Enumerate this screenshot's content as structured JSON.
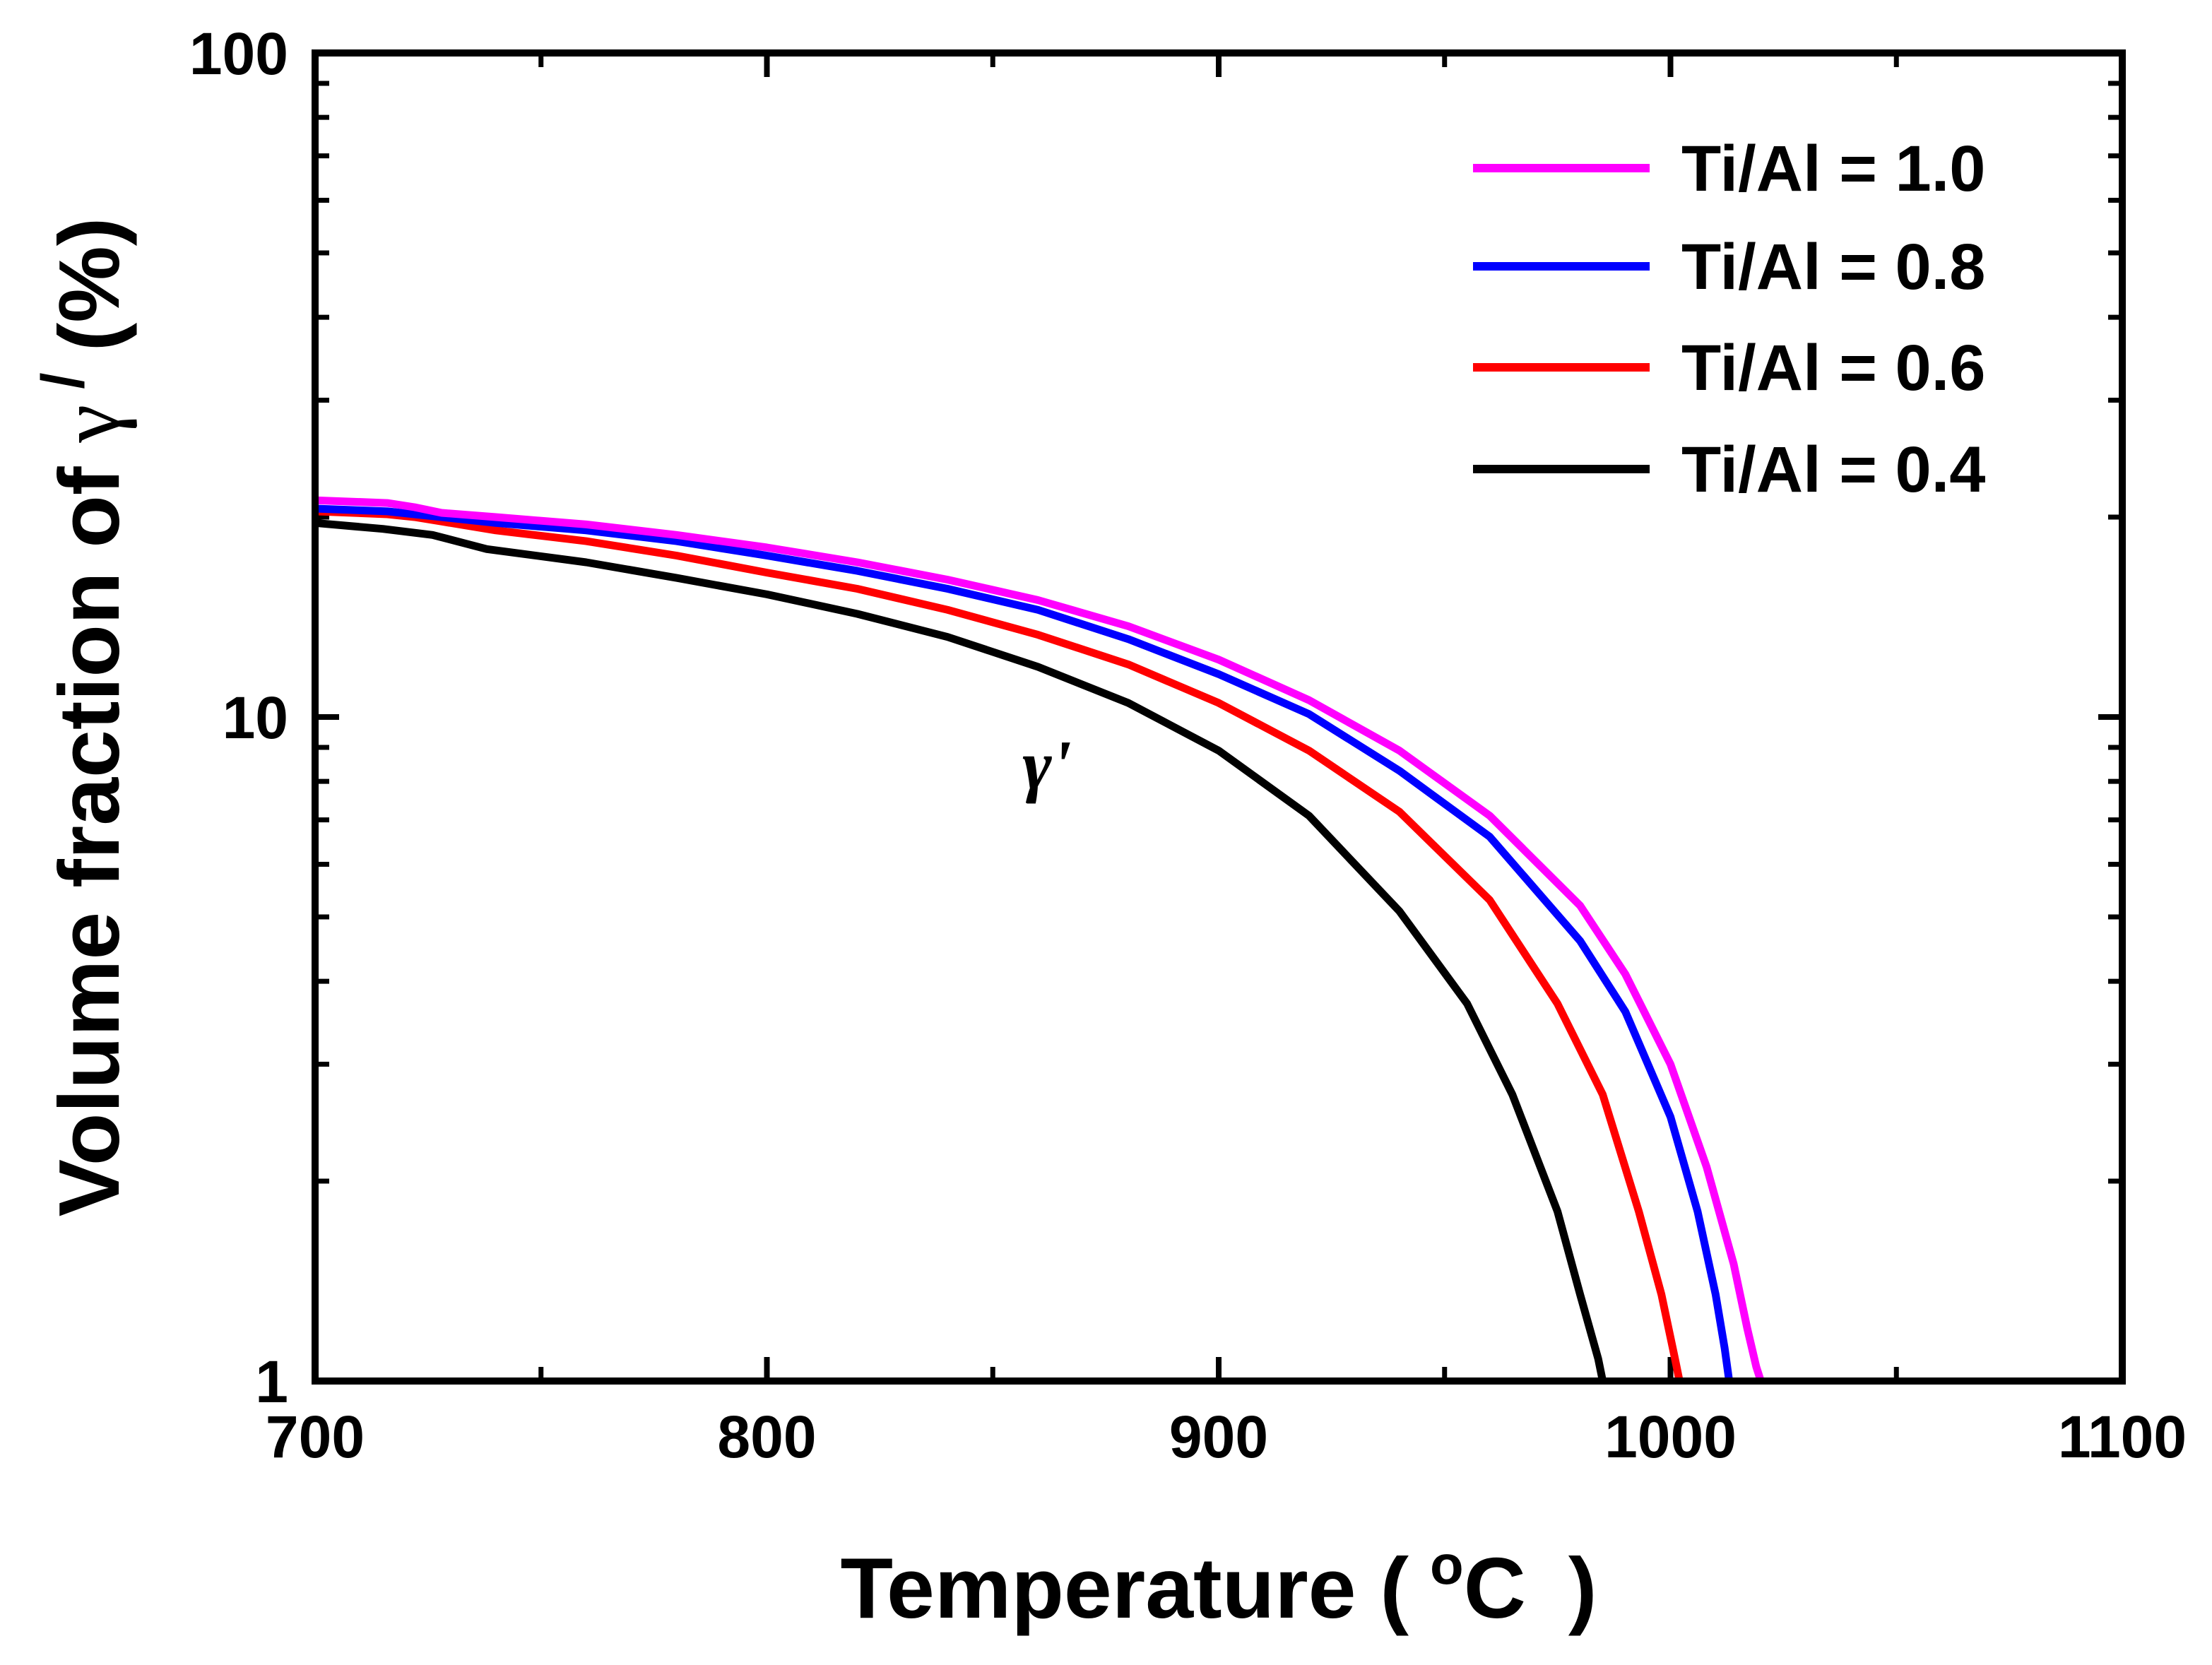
{
  "chart_data": {
    "type": "line",
    "title": "",
    "xlabel": {
      "prefix": "Temperature (",
      "sup": "o",
      "unit": "C",
      "suffix": ")"
    },
    "ylabel": {
      "prefix": "Volume fraction of ",
      "symbol": "γ",
      "sup": "/",
      "suffix": "(%)"
    },
    "xlim": [
      700,
      1100
    ],
    "ylim": [
      1,
      100
    ],
    "yscale": "log",
    "xticks": [
      700,
      800,
      900,
      1000,
      1100
    ],
    "xtick_labels": [
      "700",
      "800",
      "900",
      "1000",
      "1100"
    ],
    "yticks": [
      1,
      10,
      100
    ],
    "ytick_labels": [
      "1",
      "10",
      "100"
    ],
    "legend_position": "top-right",
    "annotation": {
      "text": "γ'",
      "x": 862,
      "y": 8.6
    },
    "series": [
      {
        "name": "Ti/Al = 1.0",
        "color": "#ff00ff",
        "x": [
          700,
          716,
          722,
          728,
          740,
          760,
          780,
          800,
          820,
          840,
          860,
          880,
          900,
          920,
          940,
          960,
          980,
          990,
          1000,
          1008,
          1014,
          1017,
          1019,
          1020
        ],
        "y": [
          21.2,
          21.0,
          20.7,
          20.3,
          20.0,
          19.5,
          18.8,
          18.0,
          17.1,
          16.1,
          15.0,
          13.7,
          12.2,
          10.6,
          8.9,
          7.1,
          5.2,
          4.1,
          3.0,
          2.1,
          1.5,
          1.2,
          1.05,
          1.0
        ]
      },
      {
        "name": "Ti/Al = 0.8",
        "color": "#0000ff",
        "x": [
          700,
          716,
          722,
          728,
          740,
          760,
          780,
          800,
          820,
          840,
          860,
          880,
          900,
          920,
          940,
          960,
          980,
          990,
          1000,
          1006,
          1010,
          1012,
          1013
        ],
        "y": [
          20.6,
          20.4,
          20.2,
          20.0,
          19.6,
          19.1,
          18.4,
          17.5,
          16.6,
          15.6,
          14.5,
          13.1,
          11.6,
          10.1,
          8.3,
          6.6,
          4.6,
          3.6,
          2.5,
          1.8,
          1.35,
          1.12,
          1.0
        ]
      },
      {
        "name": "Ti/Al = 0.6",
        "color": "#ff0000",
        "x": [
          700,
          716,
          722,
          728,
          740,
          760,
          780,
          800,
          820,
          840,
          860,
          880,
          900,
          920,
          940,
          960,
          975,
          985,
          993,
          998,
          1001,
          1002
        ],
        "y": [
          20.4,
          20.2,
          20.0,
          19.7,
          19.1,
          18.4,
          17.5,
          16.5,
          15.6,
          14.5,
          13.3,
          12.0,
          10.5,
          8.9,
          7.2,
          5.3,
          3.7,
          2.7,
          1.8,
          1.35,
          1.08,
          1.0
        ]
      },
      {
        "name": "Ti/Al = 0.4",
        "color": "#000000",
        "x": [
          700,
          715,
          726,
          738,
          760,
          780,
          800,
          820,
          840,
          860,
          880,
          900,
          920,
          940,
          955,
          965,
          975,
          980,
          984,
          985
        ],
        "y": [
          19.6,
          19.2,
          18.8,
          17.9,
          17.1,
          16.2,
          15.3,
          14.3,
          13.2,
          11.9,
          10.5,
          8.9,
          7.1,
          5.1,
          3.7,
          2.7,
          1.8,
          1.35,
          1.08,
          1.0
        ]
      }
    ]
  }
}
